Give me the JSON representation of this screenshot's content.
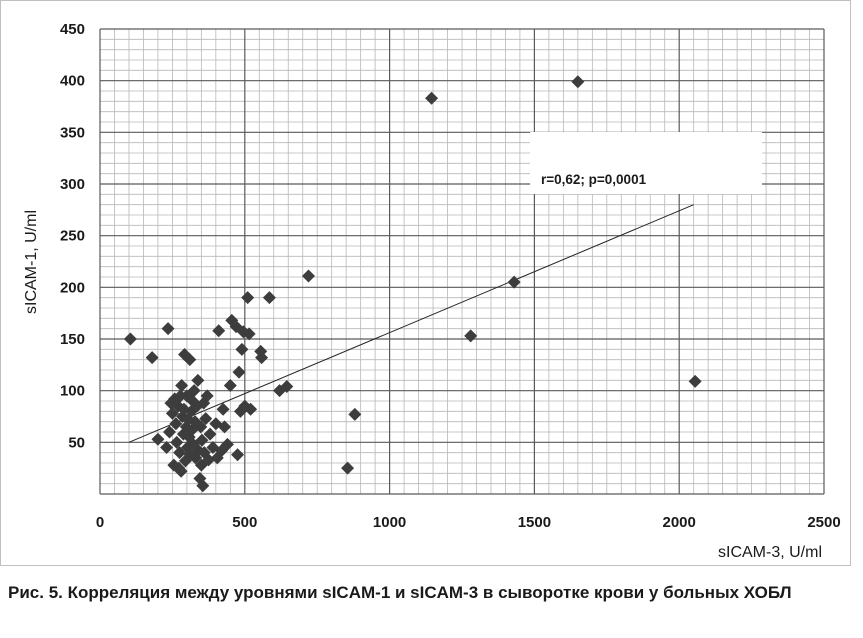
{
  "chart_data": {
    "type": "scatter",
    "xlabel": "sICAM-3, U/ml",
    "ylabel": "sICAM-1, U/ml",
    "xlim": [
      0,
      2500
    ],
    "ylim": [
      0,
      450
    ],
    "xticks": [
      0,
      500,
      1000,
      1500,
      2000,
      2500
    ],
    "yticks": [
      50,
      100,
      150,
      200,
      250,
      300,
      350,
      400,
      450
    ],
    "grid": true,
    "annotation": "r=0,62; p=0,0001",
    "trendline": {
      "x": [
        100,
        2050
      ],
      "y": [
        50,
        280
      ]
    },
    "points": [
      {
        "x": 105,
        "y": 150
      },
      {
        "x": 180,
        "y": 132
      },
      {
        "x": 200,
        "y": 53
      },
      {
        "x": 235,
        "y": 160
      },
      {
        "x": 230,
        "y": 45
      },
      {
        "x": 240,
        "y": 60
      },
      {
        "x": 245,
        "y": 88
      },
      {
        "x": 250,
        "y": 78
      },
      {
        "x": 255,
        "y": 28
      },
      {
        "x": 258,
        "y": 92
      },
      {
        "x": 262,
        "y": 68
      },
      {
        "x": 265,
        "y": 50
      },
      {
        "x": 270,
        "y": 85
      },
      {
        "x": 272,
        "y": 25
      },
      {
        "x": 275,
        "y": 40
      },
      {
        "x": 278,
        "y": 95
      },
      {
        "x": 280,
        "y": 22
      },
      {
        "x": 282,
        "y": 105
      },
      {
        "x": 285,
        "y": 75
      },
      {
        "x": 288,
        "y": 58
      },
      {
        "x": 290,
        "y": 82
      },
      {
        "x": 292,
        "y": 135
      },
      {
        "x": 295,
        "y": 32
      },
      {
        "x": 298,
        "y": 65
      },
      {
        "x": 300,
        "y": 95
      },
      {
        "x": 302,
        "y": 45
      },
      {
        "x": 305,
        "y": 72
      },
      {
        "x": 308,
        "y": 55
      },
      {
        "x": 310,
        "y": 130
      },
      {
        "x": 312,
        "y": 38
      },
      {
        "x": 315,
        "y": 80
      },
      {
        "x": 318,
        "y": 62
      },
      {
        "x": 320,
        "y": 90
      },
      {
        "x": 322,
        "y": 48
      },
      {
        "x": 325,
        "y": 100
      },
      {
        "x": 328,
        "y": 70
      },
      {
        "x": 330,
        "y": 35
      },
      {
        "x": 335,
        "y": 85
      },
      {
        "x": 338,
        "y": 110
      },
      {
        "x": 340,
        "y": 42
      },
      {
        "x": 345,
        "y": 15
      },
      {
        "x": 348,
        "y": 65
      },
      {
        "x": 350,
        "y": 28
      },
      {
        "x": 352,
        "y": 52
      },
      {
        "x": 355,
        "y": 8
      },
      {
        "x": 358,
        "y": 88
      },
      {
        "x": 360,
        "y": 40
      },
      {
        "x": 365,
        "y": 73
      },
      {
        "x": 370,
        "y": 95
      },
      {
        "x": 375,
        "y": 33
      },
      {
        "x": 380,
        "y": 58
      },
      {
        "x": 390,
        "y": 45
      },
      {
        "x": 400,
        "y": 68
      },
      {
        "x": 405,
        "y": 35
      },
      {
        "x": 410,
        "y": 158
      },
      {
        "x": 420,
        "y": 42
      },
      {
        "x": 425,
        "y": 82
      },
      {
        "x": 430,
        "y": 65
      },
      {
        "x": 440,
        "y": 48
      },
      {
        "x": 450,
        "y": 105
      },
      {
        "x": 455,
        "y": 168
      },
      {
        "x": 470,
        "y": 162
      },
      {
        "x": 475,
        "y": 38
      },
      {
        "x": 480,
        "y": 118
      },
      {
        "x": 485,
        "y": 80
      },
      {
        "x": 490,
        "y": 140
      },
      {
        "x": 495,
        "y": 157
      },
      {
        "x": 500,
        "y": 85
      },
      {
        "x": 510,
        "y": 190
      },
      {
        "x": 515,
        "y": 155
      },
      {
        "x": 520,
        "y": 82
      },
      {
        "x": 555,
        "y": 138
      },
      {
        "x": 558,
        "y": 132
      },
      {
        "x": 585,
        "y": 190
      },
      {
        "x": 620,
        "y": 100
      },
      {
        "x": 645,
        "y": 104
      },
      {
        "x": 720,
        "y": 211
      },
      {
        "x": 855,
        "y": 25
      },
      {
        "x": 880,
        "y": 77
      },
      {
        "x": 1145,
        "y": 383
      },
      {
        "x": 1280,
        "y": 153
      },
      {
        "x": 1430,
        "y": 205
      },
      {
        "x": 1650,
        "y": 399
      },
      {
        "x": 2055,
        "y": 109
      }
    ]
  },
  "caption": "Рис. 5. Корреляция между уровнями sICAM-1 и sICAM-3 в сыворотке крови у больных ХОБЛ"
}
